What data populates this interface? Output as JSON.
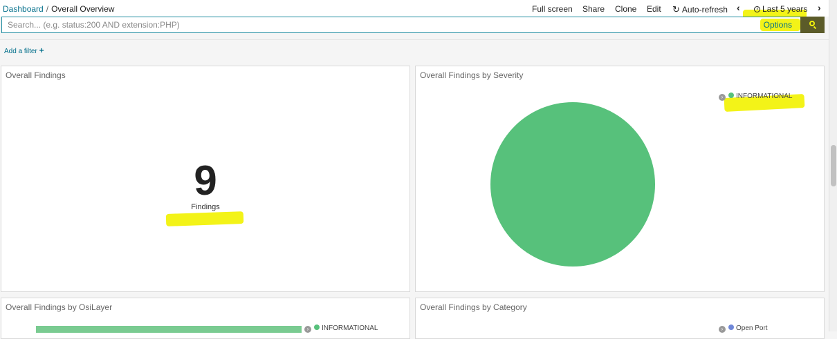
{
  "breadcrumb": {
    "root": "Dashboard",
    "separator": "/",
    "current": "Overall Overview"
  },
  "top_menu": {
    "fullscreen": "Full screen",
    "share": "Share",
    "clone": "Clone",
    "edit": "Edit",
    "autorefresh": "Auto-refresh",
    "time_range": "Last 5 years"
  },
  "search": {
    "placeholder": "Search... (e.g. status:200 AND extension:PHP)",
    "options_label": "Options"
  },
  "filter": {
    "add_label": "Add a filter",
    "add_icon": "+"
  },
  "colors": {
    "accent": "#006e8a",
    "green": "#57c17b",
    "blue": "#6f87d8",
    "highlight": "#f2f20c"
  },
  "panels": {
    "findings": {
      "title": "Overall Findings",
      "value": "9",
      "label": "Findings"
    },
    "severity": {
      "title": "Overall Findings by Severity",
      "legend": [
        "INFORMATIONAL"
      ],
      "pie_value": 9
    },
    "osilayer": {
      "title": "Overall Findings by OsiLayer",
      "legend": [
        "INFORMATIONAL"
      ]
    },
    "category": {
      "title": "Overall Findings by Category",
      "legend": [
        "Open Port"
      ]
    }
  }
}
